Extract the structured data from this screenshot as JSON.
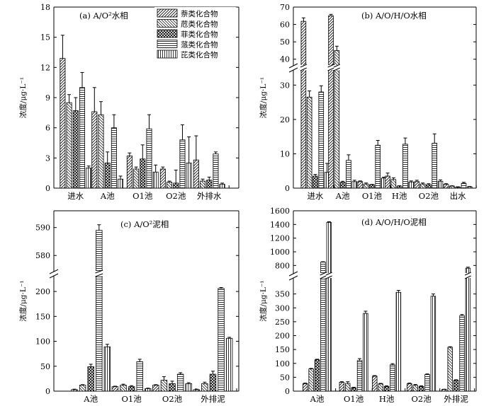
{
  "y_axis_label": "浓度/μg·L⁻¹",
  "legend": {
    "entries": [
      "萘类化合物",
      "苊类化合物",
      "菲类化合物",
      "蒎类化合物",
      "芘类化合物"
    ]
  },
  "chart_data": [
    {
      "type": "bar",
      "title": "(a) A/O²水相",
      "ylabel": "浓度/μg·L⁻¹",
      "ylim": [
        0,
        18
      ],
      "yticks": [
        0,
        3,
        6,
        9,
        12,
        15,
        18
      ],
      "categories": [
        "进水",
        "A池",
        "O1池",
        "O2池",
        "外排水"
      ],
      "series": [
        {
          "name": "萘类化合物",
          "values": [
            12.9,
            7.6,
            3.2,
            1.9,
            2.8
          ],
          "errors": [
            2.3,
            2.4,
            0.3,
            0.2,
            2.4
          ]
        },
        {
          "name": "苊类化合物",
          "values": [
            8.5,
            7.3,
            1.9,
            0.6,
            0.7
          ],
          "errors": [
            0.8,
            1.3,
            0.2,
            0.1,
            0.2
          ]
        },
        {
          "name": "菲类化合物",
          "values": [
            7.7,
            2.5,
            2.9,
            0.5,
            0.8
          ],
          "errors": [
            1.3,
            1.1,
            1.4,
            1.3,
            0.3
          ]
        },
        {
          "name": "蒎类化合物",
          "values": [
            10.0,
            6.0,
            5.9,
            4.8,
            3.4
          ],
          "errors": [
            1.5,
            1.3,
            1.4,
            1.5,
            0.2
          ]
        },
        {
          "name": "芘类化合物",
          "values": [
            2.0,
            0.9,
            1.6,
            2.5,
            0.4
          ],
          "errors": [
            0.2,
            0.3,
            0.7,
            2.6,
            0.1
          ]
        }
      ]
    },
    {
      "type": "bar",
      "title": "(b) A/O/H/O水相",
      "ylabel": "浓度/μg·L⁻¹",
      "y_break": {
        "lower": [
          0,
          35
        ],
        "upper": [
          35,
          70
        ]
      },
      "yticks": [
        0,
        10,
        20,
        30,
        40,
        50,
        60,
        70
      ],
      "categories": [
        "进水",
        "A池",
        "O1池",
        "H池",
        "O2池",
        "出水"
      ],
      "series": [
        {
          "name": "萘类化合物",
          "values": [
            61.8,
            65.0,
            1.9,
            3.5,
            1.9,
            1.1
          ],
          "errors": [
            2.0,
            0.8,
            0.2,
            0.9,
            0.4,
            0.2
          ]
        },
        {
          "name": "苊类化合物",
          "values": [
            26.5,
            45.0,
            1.2,
            2.5,
            1.2,
            0.6
          ],
          "errors": [
            1.8,
            2.5,
            0.3,
            0.5,
            0.3,
            0.1
          ]
        },
        {
          "name": "菲类化合物",
          "values": [
            3.5,
            1.7,
            1.0,
            0.6,
            1.0,
            0.3
          ],
          "errors": [
            0.5,
            0.3,
            0.1,
            0.1,
            0.3,
            0.1
          ]
        },
        {
          "name": "蒎类化合物",
          "values": [
            28.0,
            8.1,
            12.5,
            12.8,
            13.1,
            1.4
          ],
          "errors": [
            1.8,
            1.6,
            1.4,
            1.8,
            2.7,
            0.3
          ]
        },
        {
          "name": "芘类化合物",
          "values": [
            4.6,
            1.9,
            2.9,
            1.8,
            2.0,
            0.4
          ],
          "errors": [
            2.6,
            0.4,
            0.3,
            0.3,
            0.4,
            0.1
          ]
        }
      ]
    },
    {
      "type": "bar",
      "title": "(c) A/O²泥相",
      "ylabel": "浓度/μg·L⁻¹",
      "y_break": {
        "lower": [
          0,
          220
        ],
        "upper": [
          576,
          596
        ]
      },
      "yticks": [
        0,
        50,
        100,
        150,
        200,
        580,
        590
      ],
      "categories": [
        "A池",
        "O1池",
        "O2池",
        "外排泥"
      ],
      "series": [
        {
          "name": "萘类化合物",
          "values": [
            3,
            9,
            12,
            3
          ],
          "errors": [
            1,
            1,
            1,
            1
          ]
        },
        {
          "name": "苊类化合物",
          "values": [
            12,
            12,
            22,
            15
          ],
          "errors": [
            1,
            2,
            7,
            3
          ]
        },
        {
          "name": "菲类化合物",
          "values": [
            49,
            9,
            15,
            34
          ],
          "errors": [
            5,
            2,
            5,
            6
          ]
        },
        {
          "name": "蒎类化合物",
          "values": [
            589,
            59,
            34,
            206
          ],
          "errors": [
            2,
            5,
            3,
            2
          ]
        },
        {
          "name": "芘类化合物",
          "values": [
            89,
            5,
            15,
            106
          ],
          "errors": [
            5,
            1,
            2,
            2
          ]
        }
      ]
    },
    {
      "type": "bar",
      "title": "(d) A/O/H/O泥相",
      "ylabel": "浓度/μg·L⁻¹",
      "y_break": {
        "lower": [
          0,
          400
        ],
        "upper": [
          700,
          1600
        ]
      },
      "yticks": [
        0,
        50,
        100,
        150,
        200,
        250,
        300,
        350,
        800,
        1000,
        1200,
        1400,
        1600
      ],
      "categories": [
        "A池",
        "O1池",
        "H池",
        "O2池",
        "外排泥"
      ],
      "series": [
        {
          "name": "萘类化合物",
          "values": [
            27,
            32,
            54,
            27,
            6
          ],
          "errors": [
            2,
            2,
            2,
            2,
            1
          ]
        },
        {
          "name": "苊类化合物",
          "values": [
            80,
            28,
            26,
            21,
            158
          ],
          "errors": [
            2,
            6,
            2,
            3,
            2
          ]
        },
        {
          "name": "菲类化合物",
          "values": [
            113,
            12,
            17,
            17,
            39
          ],
          "errors": [
            2,
            2,
            2,
            2,
            2
          ]
        },
        {
          "name": "蒎类化合物",
          "values": [
            850,
            110,
            95,
            60,
            272
          ],
          "errors": [
            5,
            7,
            4,
            2,
            4
          ]
        },
        {
          "name": "芘类化合物",
          "values": [
            1430,
            280,
            356,
            342,
            760
          ],
          "errors": [
            10,
            8,
            7,
            8,
            15
          ]
        }
      ]
    }
  ]
}
